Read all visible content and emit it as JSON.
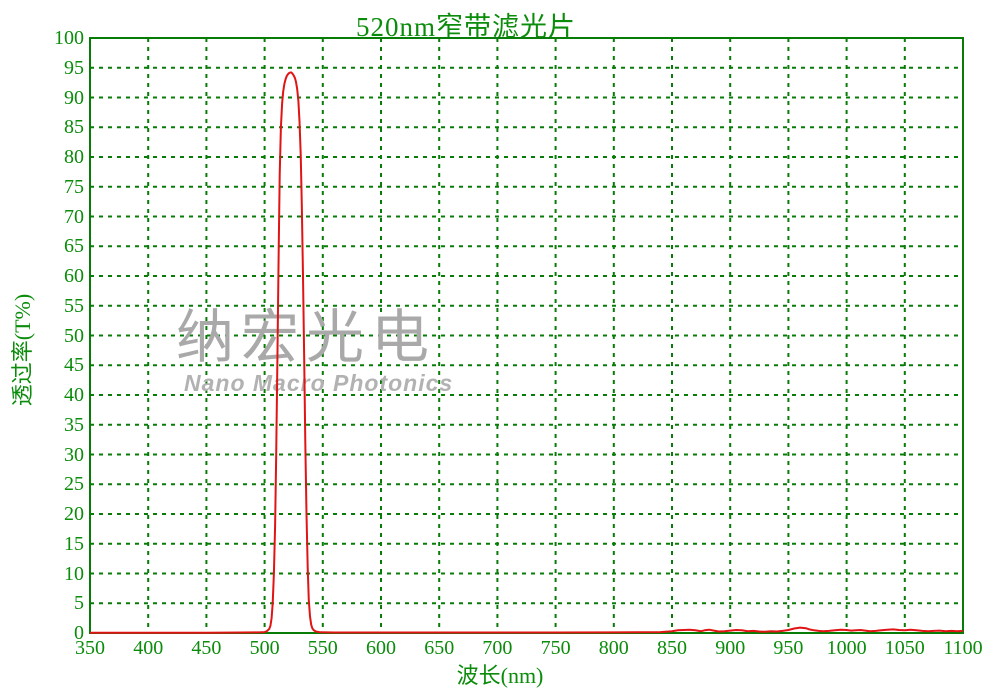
{
  "title": "520nm窄带滤光片",
  "watermark": {
    "cjk": "纳宏光电",
    "latin": "Nano Macro Photonics"
  },
  "colors": {
    "axis_green": "#077c07",
    "text_green": "#0b8c0b",
    "curve_red": "#e01414",
    "watermark_gray": "#a9a9a9",
    "watermark_gray_light": "#b2b2b2",
    "background": "#ffffff"
  },
  "chart_data": {
    "type": "line",
    "title": "520nm窄带滤光片",
    "xlabel": "波长(nm)",
    "ylabel": "透过率(T%)",
    "xlim": [
      350,
      1100
    ],
    "ylim": [
      0,
      100
    ],
    "x_ticks": [
      350,
      400,
      450,
      500,
      550,
      600,
      650,
      700,
      750,
      800,
      850,
      900,
      950,
      1000,
      1050,
      1100
    ],
    "y_ticks": [
      0,
      5,
      10,
      15,
      20,
      25,
      30,
      35,
      40,
      45,
      50,
      55,
      60,
      65,
      70,
      75,
      80,
      85,
      90,
      95,
      100
    ],
    "grid": "dashed green lines at every x/y tick, solid green border",
    "legend": "none",
    "series": [
      {
        "name": "transmittance",
        "color": "#e01414",
        "points": [
          [
            350,
            0.05
          ],
          [
            400,
            0.05
          ],
          [
            450,
            0.05
          ],
          [
            480,
            0.08
          ],
          [
            495,
            0.1
          ],
          [
            500,
            0.15
          ],
          [
            502,
            0.3
          ],
          [
            504,
            0.7
          ],
          [
            505,
            1.2
          ],
          [
            506,
            2.5
          ],
          [
            507,
            5
          ],
          [
            508,
            10
          ],
          [
            509,
            18
          ],
          [
            510,
            30
          ],
          [
            511,
            46
          ],
          [
            512,
            63
          ],
          [
            513,
            77
          ],
          [
            514,
            85
          ],
          [
            515,
            89
          ],
          [
            516,
            91
          ],
          [
            517,
            92.3
          ],
          [
            518,
            93.1
          ],
          [
            519,
            93.6
          ],
          [
            520,
            93.9
          ],
          [
            521,
            94.1
          ],
          [
            522,
            94.2
          ],
          [
            523,
            94.2
          ],
          [
            524,
            94.0
          ],
          [
            525,
            93.7
          ],
          [
            526,
            93.3
          ],
          [
            527,
            92.6
          ],
          [
            528,
            91.4
          ],
          [
            529,
            89.4
          ],
          [
            530,
            86
          ],
          [
            531,
            80.5
          ],
          [
            532,
            72
          ],
          [
            533,
            60
          ],
          [
            534,
            46
          ],
          [
            535,
            32
          ],
          [
            536,
            20
          ],
          [
            537,
            11
          ],
          [
            538,
            5.5
          ],
          [
            539,
            2.8
          ],
          [
            540,
            1.4
          ],
          [
            541,
            0.8
          ],
          [
            542,
            0.5
          ],
          [
            544,
            0.25
          ],
          [
            548,
            0.12
          ],
          [
            560,
            0.08
          ],
          [
            600,
            0.08
          ],
          [
            650,
            0.08
          ],
          [
            700,
            0.08
          ],
          [
            750,
            0.08
          ],
          [
            800,
            0.1
          ],
          [
            840,
            0.15
          ],
          [
            850,
            0.3
          ],
          [
            855,
            0.45
          ],
          [
            860,
            0.5
          ],
          [
            865,
            0.55
          ],
          [
            870,
            0.45
          ],
          [
            875,
            0.3
          ],
          [
            878,
            0.45
          ],
          [
            882,
            0.55
          ],
          [
            886,
            0.4
          ],
          [
            890,
            0.25
          ],
          [
            895,
            0.3
          ],
          [
            900,
            0.4
          ],
          [
            905,
            0.5
          ],
          [
            910,
            0.45
          ],
          [
            915,
            0.3
          ],
          [
            920,
            0.35
          ],
          [
            925,
            0.25
          ],
          [
            930,
            0.2
          ],
          [
            935,
            0.3
          ],
          [
            940,
            0.25
          ],
          [
            945,
            0.35
          ],
          [
            950,
            0.5
          ],
          [
            955,
            0.75
          ],
          [
            960,
            0.9
          ],
          [
            965,
            0.8
          ],
          [
            968,
            0.6
          ],
          [
            972,
            0.45
          ],
          [
            976,
            0.35
          ],
          [
            980,
            0.3
          ],
          [
            985,
            0.35
          ],
          [
            990,
            0.45
          ],
          [
            995,
            0.55
          ],
          [
            1000,
            0.5
          ],
          [
            1004,
            0.4
          ],
          [
            1008,
            0.45
          ],
          [
            1012,
            0.5
          ],
          [
            1016,
            0.4
          ],
          [
            1020,
            0.3
          ],
          [
            1025,
            0.35
          ],
          [
            1030,
            0.45
          ],
          [
            1035,
            0.55
          ],
          [
            1040,
            0.6
          ],
          [
            1045,
            0.5
          ],
          [
            1050,
            0.45
          ],
          [
            1055,
            0.55
          ],
          [
            1060,
            0.45
          ],
          [
            1065,
            0.35
          ],
          [
            1070,
            0.3
          ],
          [
            1075,
            0.35
          ],
          [
            1080,
            0.4
          ],
          [
            1085,
            0.3
          ],
          [
            1090,
            0.35
          ],
          [
            1095,
            0.3
          ],
          [
            1100,
            0.35
          ]
        ]
      }
    ],
    "peak": {
      "wavelength_nm": 522,
      "transmittance_pct": 94.2
    }
  }
}
